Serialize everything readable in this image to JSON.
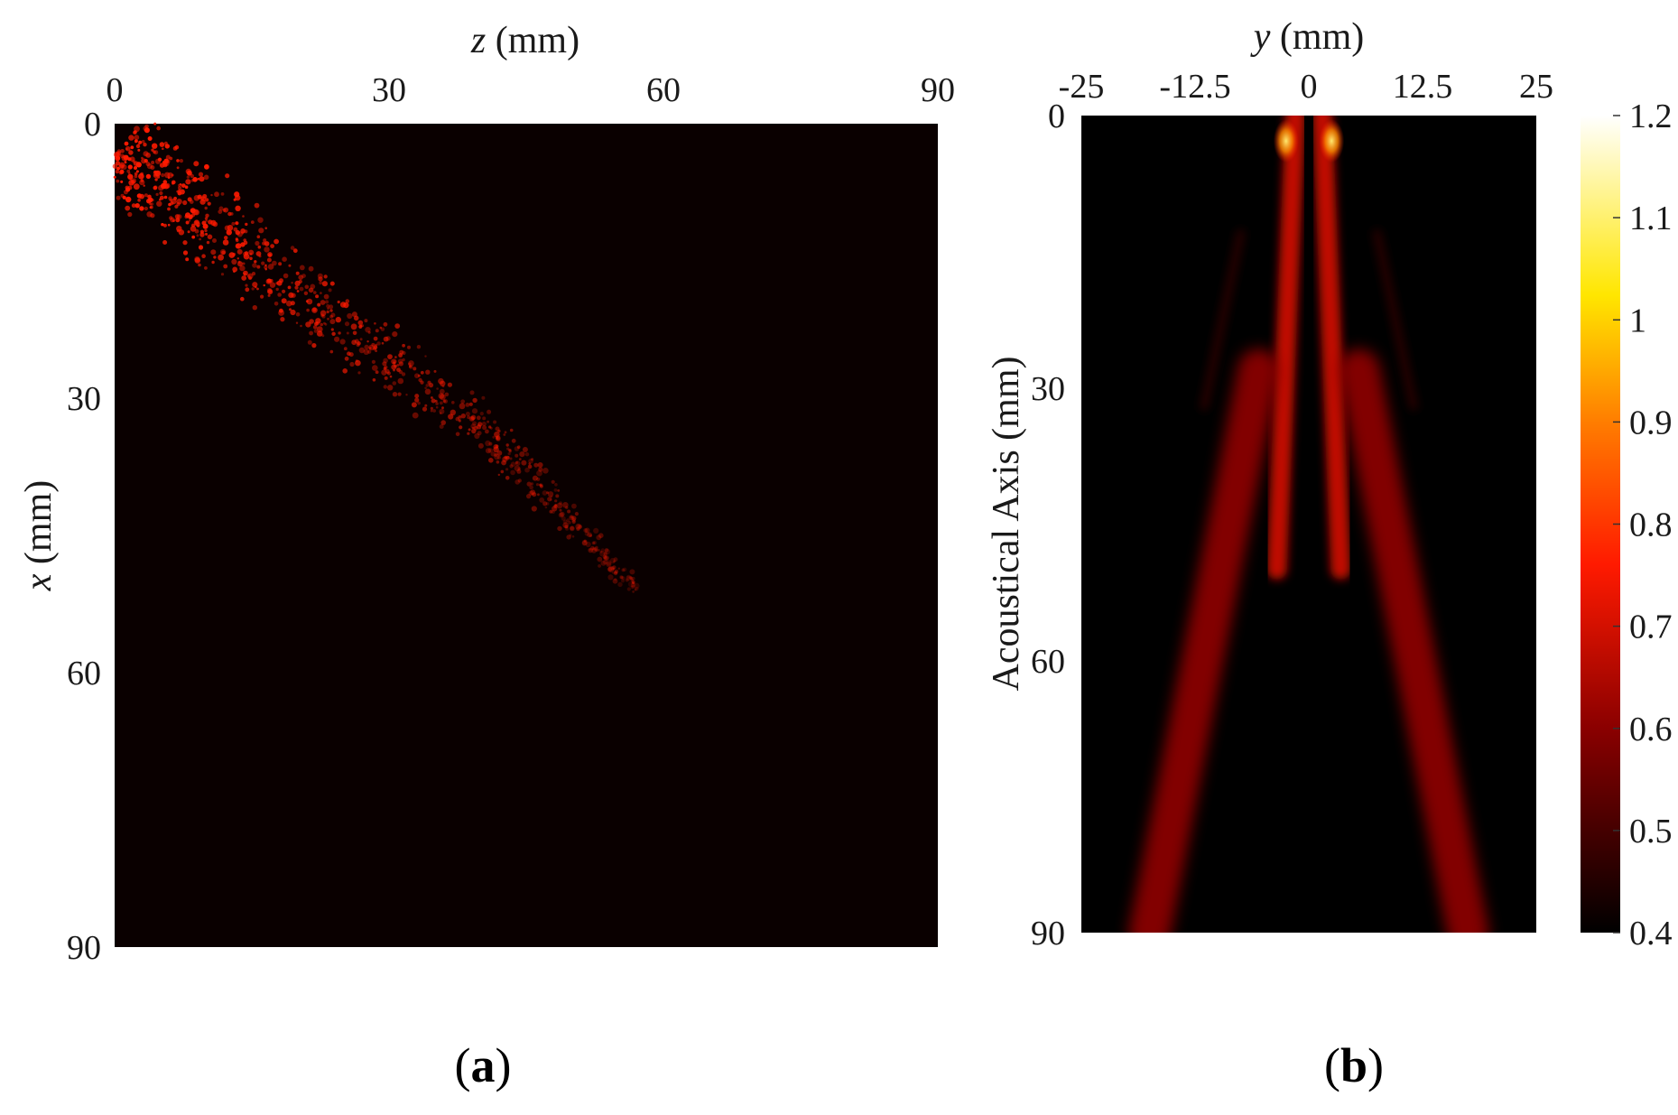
{
  "chart_data": [
    {
      "type": "heatmap",
      "panel_label": "a",
      "xlabel": {
        "var": "z",
        "unit": "(mm)"
      },
      "ylabel": {
        "var": "x",
        "unit": "(mm)"
      },
      "x_axis_position": "top",
      "xlim": [
        0,
        90
      ],
      "ylim": [
        0,
        90
      ],
      "y_reversed": true,
      "xticks": [
        "0",
        "30",
        "60",
        "90"
      ],
      "yticks": [
        "0",
        "30",
        "60",
        "90"
      ],
      "background_color": "#0a0000",
      "point_color": "#ff1a00",
      "scatter_band": {
        "description_points": [
          {
            "z": 0.5,
            "x": 3
          },
          {
            "z": 18,
            "x": 17
          },
          {
            "z": 40,
            "x": 33
          },
          {
            "z": 57,
            "x": 51
          }
        ],
        "width_mm": [
          12,
          10,
          6,
          2
        ]
      }
    },
    {
      "type": "heatmap",
      "panel_label": "b",
      "xlabel": {
        "var": "y",
        "unit": "(mm)"
      },
      "ylabel": {
        "var": "",
        "unit": "Acoustical Axis (mm)"
      },
      "x_axis_position": "top",
      "xlim": [
        -25,
        25
      ],
      "ylim": [
        0,
        90
      ],
      "y_reversed": true,
      "xticks": [
        "-25",
        "-12.5",
        "0",
        "12.5",
        "25"
      ],
      "yticks": [
        "0",
        "30",
        "60",
        "90"
      ],
      "colorbar": {
        "min": 0.4,
        "max": 1.2,
        "ticks": [
          "0.4",
          "0.5",
          "0.6",
          "0.7",
          "0.8",
          "0.9",
          "1",
          "1.1",
          "1.2"
        ]
      },
      "beams": [
        {
          "name": "inner-left",
          "from": [
            -1.5,
            0
          ],
          "to": [
            -3.5,
            50
          ],
          "peak": 0.72
        },
        {
          "name": "inner-right",
          "from": [
            1.5,
            0
          ],
          "to": [
            3.5,
            50
          ],
          "peak": 0.72
        },
        {
          "name": "outer-left",
          "from": [
            -5.5,
            28
          ],
          "to": [
            -17.5,
            90
          ],
          "peak": 0.62
        },
        {
          "name": "outer-right",
          "from": [
            5.5,
            28
          ],
          "to": [
            17.5,
            90
          ],
          "peak": 0.62
        },
        {
          "name": "side-left",
          "from": [
            -7.5,
            13
          ],
          "to": [
            -11.5,
            32
          ],
          "peak": 0.5
        },
        {
          "name": "side-right",
          "from": [
            7.5,
            13
          ],
          "to": [
            11.5,
            32
          ],
          "peak": 0.5
        }
      ],
      "hotspots": [
        {
          "y": -2.5,
          "x": 2,
          "value": 1.0
        },
        {
          "y": 2.5,
          "x": 2,
          "value": 1.0
        }
      ]
    }
  ]
}
